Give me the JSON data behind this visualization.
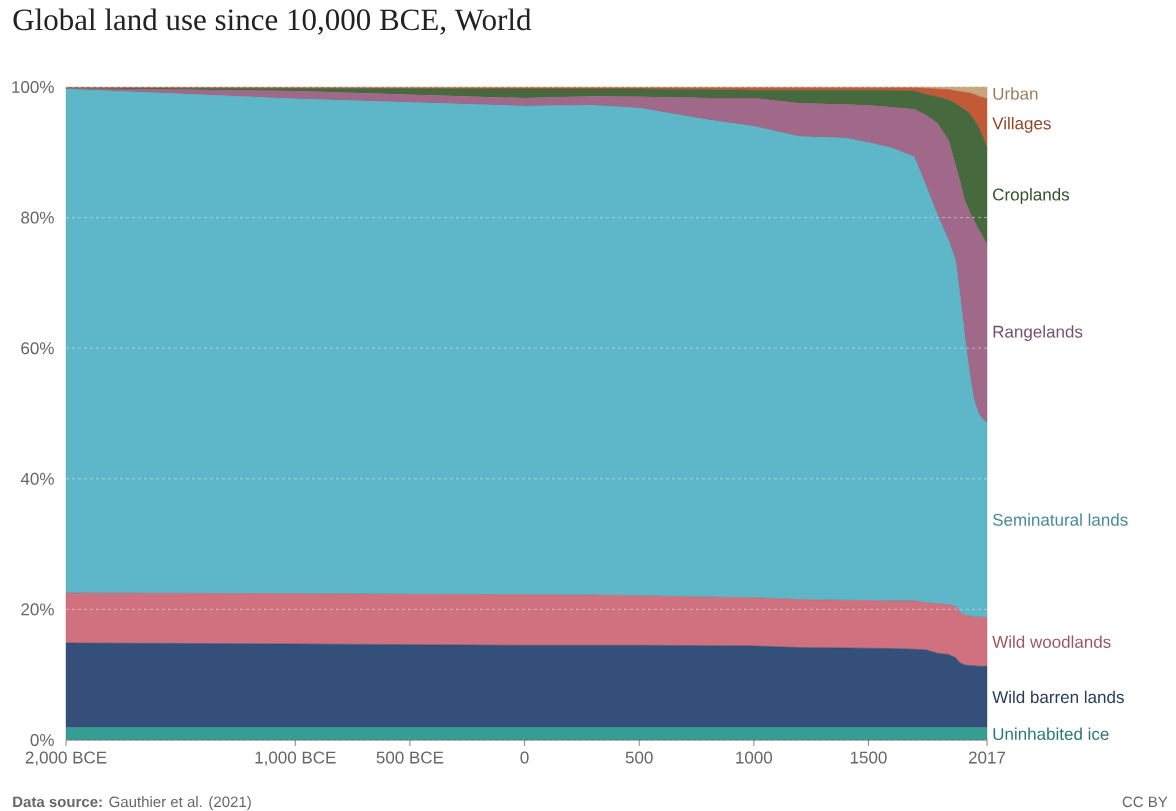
{
  "chart_data": {
    "type": "area",
    "title": "Global land use since 10,000 BCE, World",
    "stacked": true,
    "grid": "y",
    "legend": "right",
    "x": [
      -2000,
      -1000,
      0,
      300,
      500,
      800,
      1000,
      1200,
      1400,
      1500,
      1600,
      1700,
      1750,
      1800,
      1850,
      1880,
      1900,
      1920,
      1940,
      1960,
      1980,
      2000,
      2017
    ],
    "xlim": [
      -2000,
      2017
    ],
    "xticks": [
      {
        "value": -2000,
        "label": "2,000 BCE"
      },
      {
        "value": -1000,
        "label": "1,000 BCE"
      },
      {
        "value": -500,
        "label": "500 BCE"
      },
      0,
      500,
      1000,
      1500,
      2017
    ],
    "ylim": [
      0,
      100
    ],
    "yticks": [
      {
        "value": 0,
        "label": "0%"
      },
      {
        "value": 20,
        "label": "20%"
      },
      {
        "value": 40,
        "label": "40%"
      },
      {
        "value": 60,
        "label": "60%"
      },
      {
        "value": 80,
        "label": "80%"
      },
      {
        "value": 100,
        "label": "100%"
      }
    ],
    "series": [
      {
        "name": "Uninhabited ice",
        "color": "#359e92",
        "values": [
          1.9,
          1.9,
          1.9,
          1.9,
          1.9,
          1.9,
          1.9,
          1.9,
          1.9,
          1.9,
          1.9,
          1.9,
          1.9,
          1.9,
          1.9,
          1.9,
          1.9,
          1.9,
          1.9,
          1.9,
          1.9,
          1.9,
          1.9
        ]
      },
      {
        "name": "Wild barren lands",
        "color": "#34507a",
        "values": [
          12.95,
          12.8,
          12.6,
          12.6,
          12.6,
          12.55,
          12.5,
          12.25,
          12.2,
          12.15,
          12.1,
          12.0,
          11.9,
          11.4,
          11.2,
          10.7,
          9.9,
          9.6,
          9.5,
          9.5,
          9.4,
          9.4,
          9.4
        ]
      },
      {
        "name": "Wild woodlands",
        "color": "#cf717e",
        "values": [
          7.65,
          7.7,
          7.75,
          7.7,
          7.6,
          7.45,
          7.4,
          7.35,
          7.3,
          7.3,
          7.3,
          7.4,
          7.2,
          7.6,
          7.6,
          7.9,
          7.7,
          7.6,
          7.6,
          7.5,
          7.5,
          7.5,
          7.5
        ]
      },
      {
        "name": "Seminatural lands",
        "color": "#5eb7c8",
        "values": [
          77.2,
          75.8,
          74.85,
          75.0,
          74.7,
          73.1,
          72.2,
          70.9,
          70.8,
          70.15,
          69.4,
          68.0,
          64.0,
          59.6,
          55.8,
          53.0,
          48.5,
          42.9,
          37.5,
          33.3,
          31.2,
          30.2,
          29.9
        ]
      },
      {
        "name": "Rangelands",
        "color": "#a0698a",
        "values": [
          0.1,
          1.2,
          1.2,
          1.4,
          1.7,
          3.3,
          4.3,
          5.1,
          5.1,
          5.7,
          6.2,
          7.3,
          10.7,
          14.0,
          15.3,
          14.5,
          17.5,
          20.6,
          24.5,
          27.4,
          28.2,
          28.0,
          27.2
        ]
      },
      {
        "name": "Croplands",
        "color": "#466a3d",
        "values": [
          0.05,
          0.4,
          1.4,
          1.1,
          1.2,
          1.3,
          1.2,
          2.0,
          2.2,
          2.3,
          2.6,
          2.8,
          3.2,
          4.0,
          6.2,
          9.5,
          11.5,
          13.9,
          15.0,
          15.4,
          15.7,
          15.3,
          14.8
        ]
      },
      {
        "name": "Villages",
        "color": "#c35a37",
        "values": [
          0.05,
          0.1,
          0.2,
          0.2,
          0.2,
          0.3,
          0.4,
          0.4,
          0.4,
          0.4,
          0.4,
          0.5,
          0.9,
          1.2,
          1.6,
          1.9,
          2.3,
          2.7,
          3.1,
          3.9,
          4.7,
          6.1,
          7.5
        ]
      },
      {
        "name": "Urban",
        "color": "#c9a67a",
        "values": [
          0.1,
          0.1,
          0.1,
          0.1,
          0.1,
          0.1,
          0.1,
          0.1,
          0.1,
          0.1,
          0.1,
          0.1,
          0.2,
          0.3,
          0.4,
          0.6,
          0.7,
          0.8,
          0.9,
          1.1,
          1.4,
          1.6,
          1.8
        ]
      }
    ],
    "annotations": [
      "**Data source:** Gauthier et al. (2021)",
      "CC BY"
    ]
  }
}
